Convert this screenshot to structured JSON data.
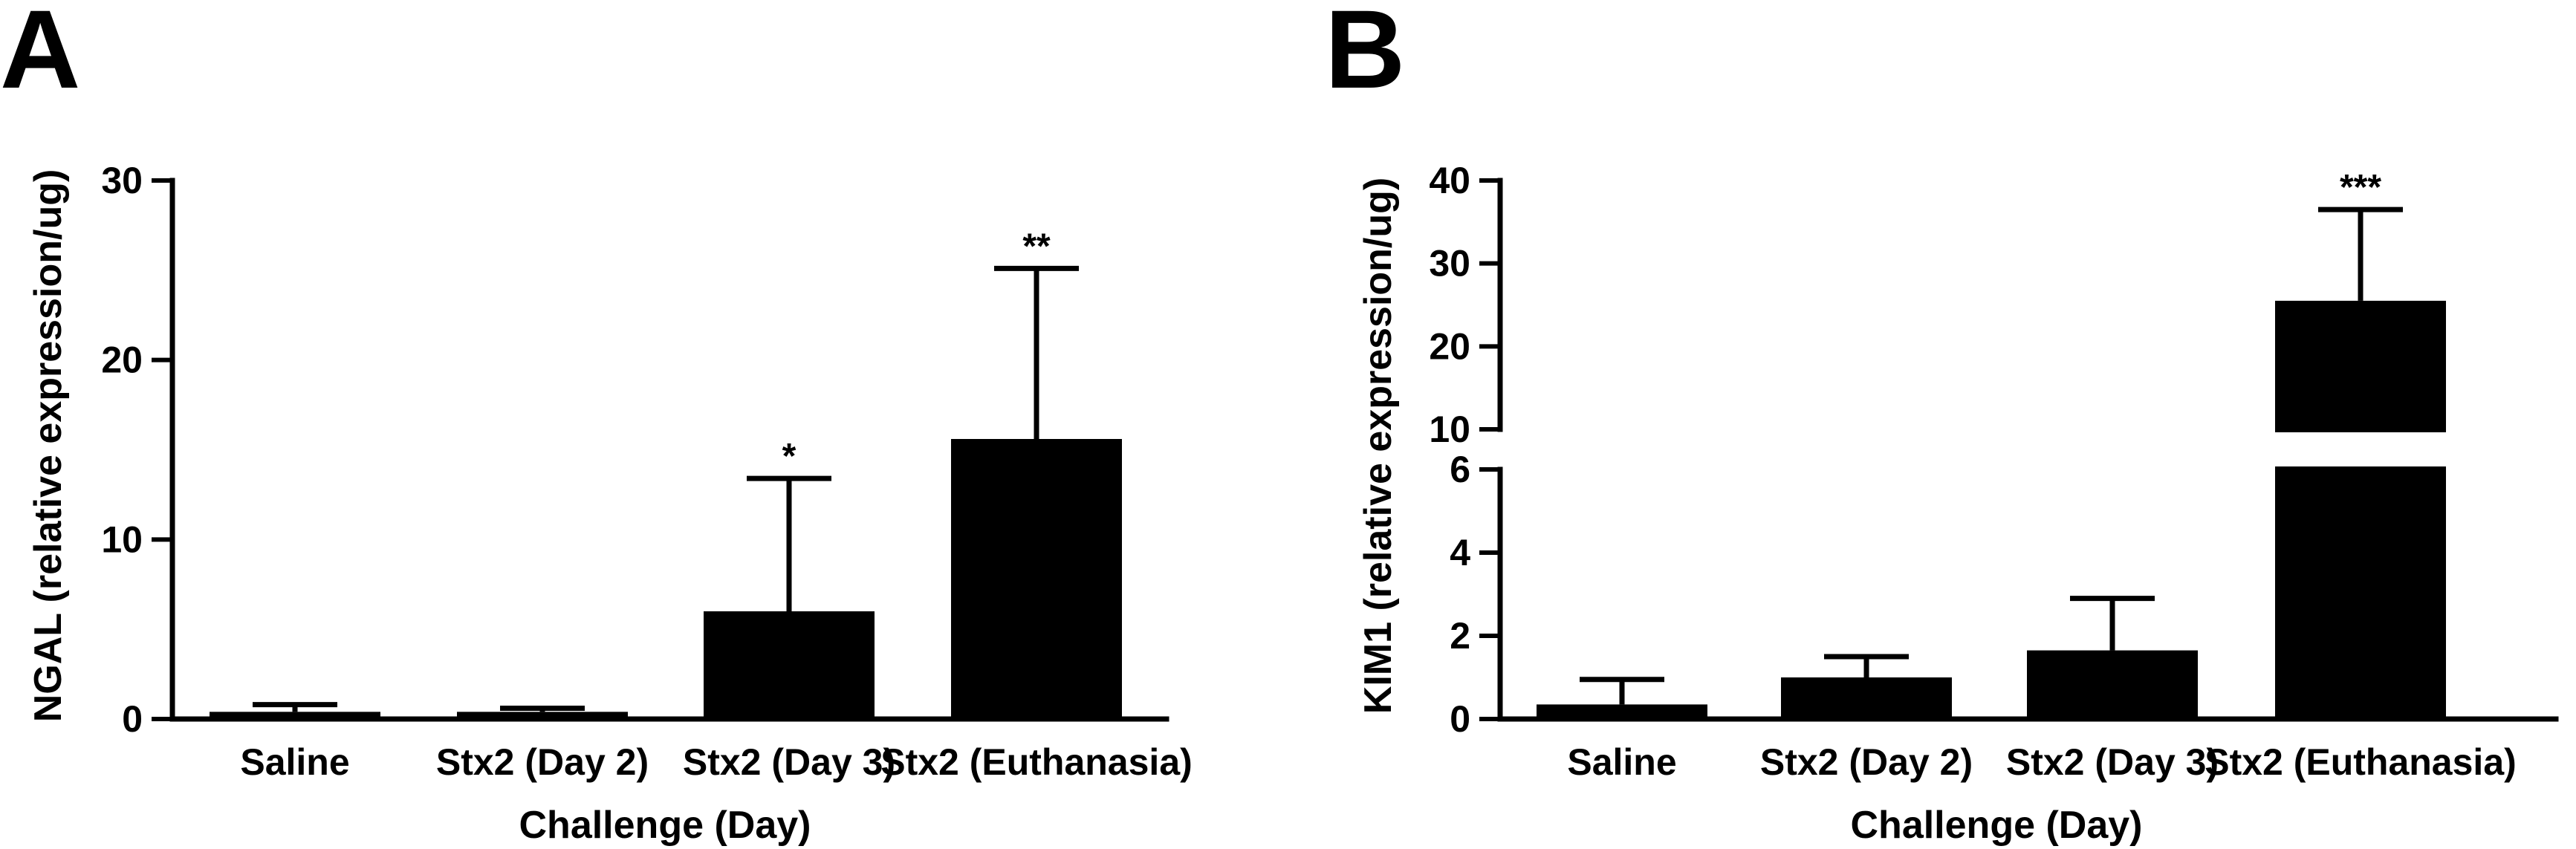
{
  "chart_data": [
    {
      "type": "bar",
      "panel_label": "A",
      "categories": [
        "Saline",
        "Stx2 (Day 2)",
        "Stx2 (Day 3)",
        "Stx2 (Euthanasia)"
      ],
      "values": [
        0.4,
        0.4,
        6.0,
        15.6
      ],
      "errors": [
        0.4,
        0.2,
        7.4,
        9.5
      ],
      "significance": [
        "",
        "",
        "*",
        "**"
      ],
      "xlabel": "Challenge (Day)",
      "ylabel": "NGAL (relative expression/ug)",
      "ylim": [
        0,
        30
      ],
      "yticks": [
        0,
        10,
        20,
        30
      ],
      "grid": false,
      "bar_color": "#000000"
    },
    {
      "type": "bar",
      "panel_label": "B",
      "categories": [
        "Saline",
        "Stx2 (Day 2)",
        "Stx2 (Day 3)",
        "Stx2 (Euthanasia)"
      ],
      "values": [
        0.35,
        1.0,
        1.65,
        25.5
      ],
      "errors": [
        0.6,
        0.5,
        1.25,
        11.0
      ],
      "significance": [
        "",
        "",
        "",
        "***"
      ],
      "xlabel": "Challenge (Day)",
      "ylabel": "KIM1 (relative expression/ug)",
      "axis_break": {
        "lower_range": [
          0,
          6
        ],
        "upper_range": [
          10,
          40
        ]
      },
      "yticks_lower": [
        0,
        2,
        4,
        6
      ],
      "yticks_upper": [
        10,
        20,
        30,
        40
      ],
      "grid": false,
      "bar_color": "#000000"
    }
  ]
}
